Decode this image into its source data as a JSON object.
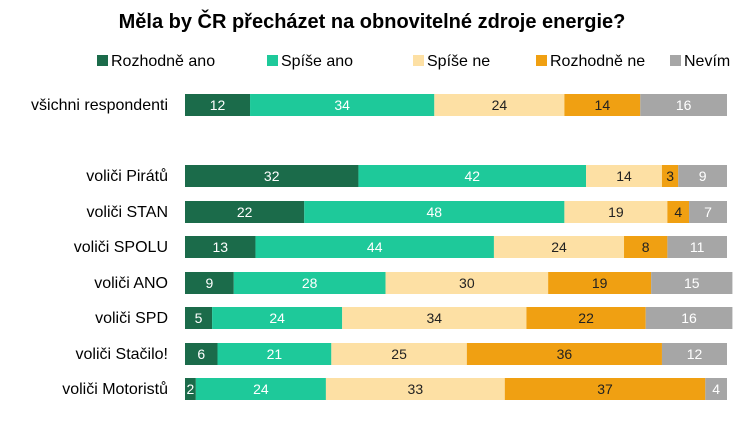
{
  "chart_data": {
    "type": "bar",
    "orientation": "horizontal-stacked-100",
    "title": "Měla by ČR přecházet na obnovitelné zdroje energie?",
    "categories": [
      "všichni respondenti",
      "voliči Pirátů",
      "voliči STAN",
      "voliči SPOLU",
      "voliči ANO",
      "voliči SPD",
      "voliči Stačilo!",
      "voliči Motoristů"
    ],
    "series": [
      {
        "name": "Rozhodně ano",
        "color": "#1b6b4a",
        "label_color": "#ffffff",
        "values": [
          12,
          32,
          22,
          13,
          9,
          5,
          6,
          2
        ]
      },
      {
        "name": "Spíše ano",
        "color": "#1ec99a",
        "label_color": "#ffffff",
        "values": [
          34,
          42,
          48,
          44,
          28,
          24,
          21,
          24
        ]
      },
      {
        "name": "Spíše ne",
        "color": "#fde0a4",
        "label_color": "#222222",
        "values": [
          24,
          14,
          19,
          24,
          30,
          34,
          25,
          33
        ]
      },
      {
        "name": "Rozhodně ne",
        "color": "#f0a012",
        "label_color": "#222222",
        "values": [
          14,
          3,
          4,
          8,
          19,
          22,
          36,
          37
        ]
      },
      {
        "name": "Nevím",
        "color": "#a6a6a6",
        "label_color": "#ffffff",
        "values": [
          16,
          9,
          7,
          11,
          15,
          16,
          12,
          4
        ]
      }
    ],
    "xlim": [
      0,
      100
    ],
    "grid": false,
    "legend_position": "top"
  }
}
